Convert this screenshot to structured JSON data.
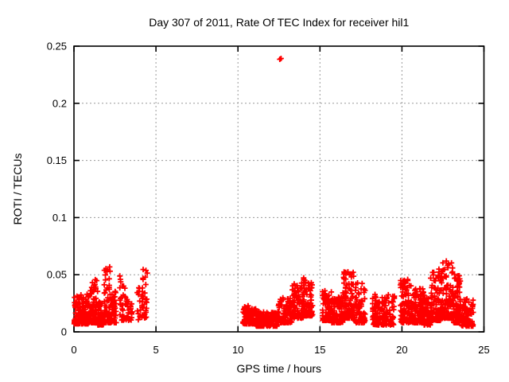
{
  "chart_data": {
    "type": "scatter",
    "title": "Day 307 of 2011, Rate Of TEC Index for receiver hil1",
    "xlabel": "GPS time / hours",
    "ylabel": "ROTI / TECUs",
    "xlim": [
      0,
      25
    ],
    "ylim": [
      0,
      0.25
    ],
    "xticks": [
      0,
      5,
      10,
      15,
      20,
      25
    ],
    "xtick_labels": [
      "0",
      "5",
      "10",
      "15",
      "20",
      "25"
    ],
    "yticks": [
      0,
      0.05,
      0.1,
      0.15,
      0.2,
      0.25
    ],
    "ytick_labels": [
      "0",
      "0.05",
      "0.1",
      "0.15",
      "0.2",
      "0.25"
    ],
    "grid": true,
    "legend_position": "none",
    "marker": "plus",
    "marker_color": "#ff0000",
    "grid_color": "#999999",
    "frame_color": "#000000",
    "background_color": "#ffffff",
    "series_name": "ROTI",
    "outlier_points": [
      [
        12.55,
        0.2385
      ],
      [
        12.63,
        0.2392
      ]
    ],
    "prng_seed": 20111103,
    "cluster_bands": [
      {
        "t0": 0.02,
        "t1": 0.95,
        "n": 160,
        "vmin": 0.007,
        "vmax": 0.033,
        "pow": 2.2
      },
      {
        "t0": 0.95,
        "t1": 1.45,
        "n": 85,
        "vmin": 0.008,
        "vmax": 0.048,
        "pow": 2.2
      },
      {
        "t0": 1.45,
        "t1": 1.8,
        "n": 55,
        "vmin": 0.006,
        "vmax": 0.028,
        "pow": 2.0
      },
      {
        "t0": 1.8,
        "t1": 2.25,
        "n": 80,
        "vmin": 0.008,
        "vmax": 0.057,
        "pow": 2.2
      },
      {
        "t0": 2.25,
        "t1": 2.58,
        "n": 45,
        "vmin": 0.008,
        "vmax": 0.036,
        "pow": 2.0
      },
      {
        "t0": 2.78,
        "t1": 3.05,
        "n": 28,
        "vmin": 0.01,
        "vmax": 0.05,
        "pow": 1.8
      },
      {
        "t0": 3.08,
        "t1": 3.35,
        "n": 22,
        "vmin": 0.01,
        "vmax": 0.044,
        "pow": 1.8
      },
      {
        "t0": 3.4,
        "t1": 3.6,
        "n": 10,
        "vmin": 0.01,
        "vmax": 0.03,
        "pow": 1.8
      },
      {
        "t0": 3.85,
        "t1": 4.2,
        "n": 20,
        "vmin": 0.01,
        "vmax": 0.04,
        "pow": 1.8
      },
      {
        "t0": 4.2,
        "t1": 4.5,
        "n": 24,
        "vmin": 0.012,
        "vmax": 0.056,
        "pow": 1.6
      },
      {
        "t0": 10.3,
        "t1": 11.1,
        "n": 110,
        "vmin": 0.007,
        "vmax": 0.023,
        "pow": 2.0
      },
      {
        "t0": 11.1,
        "t1": 12.4,
        "n": 140,
        "vmin": 0.005,
        "vmax": 0.018,
        "pow": 2.0
      },
      {
        "t0": 12.4,
        "t1": 13.3,
        "n": 95,
        "vmin": 0.008,
        "vmax": 0.03,
        "pow": 2.0
      },
      {
        "t0": 13.3,
        "t1": 14.0,
        "n": 85,
        "vmin": 0.012,
        "vmax": 0.043,
        "pow": 2.0
      },
      {
        "t0": 14.0,
        "t1": 14.55,
        "n": 70,
        "vmin": 0.014,
        "vmax": 0.048,
        "pow": 2.0
      },
      {
        "t0": 15.15,
        "t1": 15.7,
        "n": 85,
        "vmin": 0.01,
        "vmax": 0.036,
        "pow": 2.0
      },
      {
        "t0": 15.7,
        "t1": 16.4,
        "n": 110,
        "vmin": 0.008,
        "vmax": 0.031,
        "pow": 2.0
      },
      {
        "t0": 16.4,
        "t1": 17.1,
        "n": 110,
        "vmin": 0.012,
        "vmax": 0.053,
        "pow": 2.2
      },
      {
        "t0": 17.1,
        "t1": 17.75,
        "n": 80,
        "vmin": 0.008,
        "vmax": 0.043,
        "pow": 2.2
      },
      {
        "t0": 18.2,
        "t1": 19.55,
        "n": 135,
        "vmin": 0.006,
        "vmax": 0.033,
        "pow": 2.0
      },
      {
        "t0": 19.9,
        "t1": 20.6,
        "n": 100,
        "vmin": 0.008,
        "vmax": 0.046,
        "pow": 2.2
      },
      {
        "t0": 20.6,
        "t1": 21.35,
        "n": 110,
        "vmin": 0.008,
        "vmax": 0.038,
        "pow": 2.0
      },
      {
        "t0": 21.35,
        "t1": 21.75,
        "n": 60,
        "vmin": 0.006,
        "vmax": 0.03,
        "pow": 2.0
      },
      {
        "t0": 21.75,
        "t1": 22.4,
        "n": 115,
        "vmin": 0.01,
        "vmax": 0.055,
        "pow": 2.2
      },
      {
        "t0": 22.4,
        "t1": 23.1,
        "n": 125,
        "vmin": 0.012,
        "vmax": 0.062,
        "pow": 2.2
      },
      {
        "t0": 23.1,
        "t1": 23.6,
        "n": 95,
        "vmin": 0.008,
        "vmax": 0.052,
        "pow": 2.2
      },
      {
        "t0": 23.6,
        "t1": 24.35,
        "n": 85,
        "vmin": 0.005,
        "vmax": 0.03,
        "pow": 2.0
      }
    ]
  }
}
